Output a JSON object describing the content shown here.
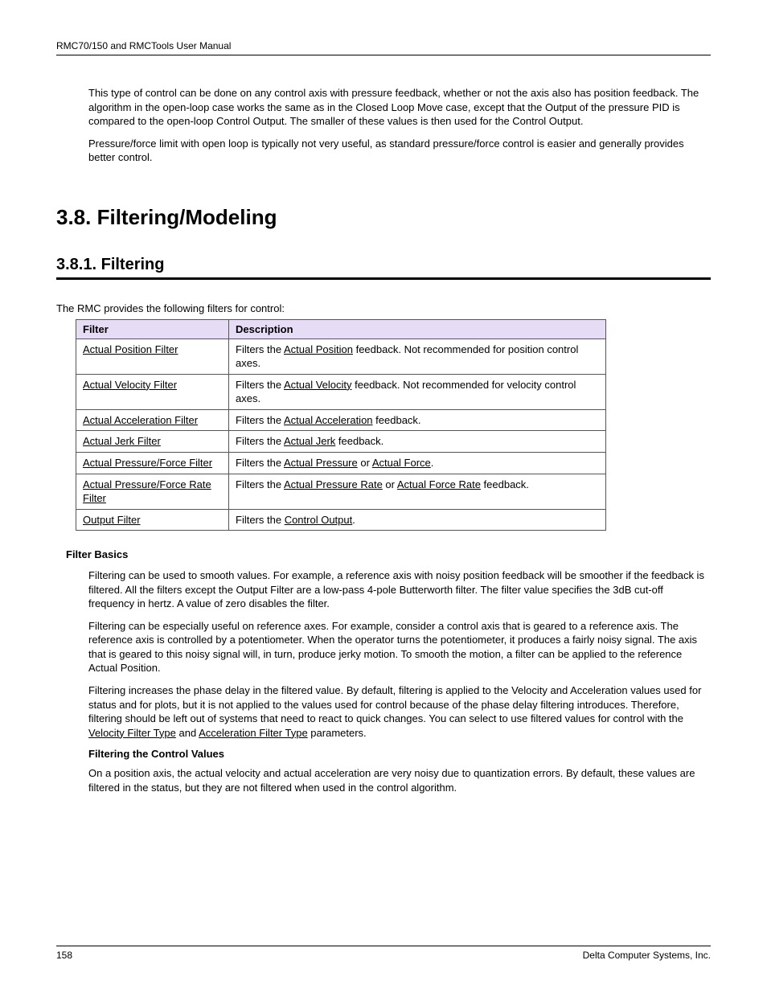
{
  "header": {
    "text": "RMC70/150 and RMCTools User Manual"
  },
  "intro": {
    "p1": "This type of control can be done on any control axis with pressure feedback, whether or not the axis also has position feedback. The algorithm in the open-loop case works the same as in the Closed Loop Move case, except that the Output of the pressure PID is compared to the open-loop Control Output. The smaller of these values is then used for the Control Output.",
    "p2": "Pressure/force limit with open loop is typically not very useful, as standard pressure/force control is easier and generally provides better control."
  },
  "headings": {
    "h1": "3.8. Filtering/Modeling",
    "h2": "3.8.1. Filtering",
    "intro": "The RMC provides the following filters for control:",
    "filter_basics": "Filter Basics",
    "filtering_control": "Filtering the Control Values"
  },
  "table": {
    "header_bg": "#e6dcf5",
    "col1": "Filter",
    "col2": "Description",
    "rows": [
      {
        "filter": "Actual Position Filter",
        "desc_pre": "Filters the ",
        "desc_link": "Actual Position",
        "desc_post": " feedback. Not recommended for position control axes."
      },
      {
        "filter": "Actual Velocity Filter",
        "desc_pre": "Filters the ",
        "desc_link": "Actual Velocity",
        "desc_post": " feedback. Not recommended for velocity control axes."
      },
      {
        "filter": "Actual Acceleration Filter",
        "desc_pre": "Filters the ",
        "desc_link": "Actual Acceleration",
        "desc_post": " feedback."
      },
      {
        "filter": "Actual Jerk Filter",
        "desc_pre": "Filters the ",
        "desc_link": "Actual Jerk",
        "desc_post": " feedback."
      },
      {
        "filter": "Actual Pressure/Force Filter",
        "desc_pre": "Filters the ",
        "desc_link": "Actual Pressure",
        "desc_mid": " or ",
        "desc_link2": "Actual Force",
        "desc_post": "."
      },
      {
        "filter": "Actual Pressure/Force Rate Filter",
        "desc_pre": "Filters the ",
        "desc_link": "Actual Pressure Rate",
        "desc_mid": " or ",
        "desc_link2": "Actual Force Rate",
        "desc_post": " feedback."
      },
      {
        "filter": "Output Filter",
        "desc_pre": "Filters the ",
        "desc_link": "Control Output",
        "desc_post": "."
      }
    ]
  },
  "basics": {
    "p1": "Filtering can be used to smooth values. For example, a reference axis with noisy position feedback will be smoother if the feedback is filtered. All the filters except the Output Filter are a low-pass 4-pole Butterworth filter. The filter value specifies the 3dB cut-off frequency in hertz. A value of zero disables the filter.",
    "p2": "Filtering can be especially useful on reference axes. For example, consider a control axis that is geared to a reference axis. The reference axis is controlled by a potentiometer. When the operator turns the potentiometer, it produces a fairly noisy signal. The axis that is geared to this noisy signal will, in turn, produce jerky motion. To smooth the motion, a filter can be applied to the reference Actual Position.",
    "p3_pre": "Filtering increases the phase delay in the filtered value. By default, filtering is applied to the Velocity and Acceleration values used for status and for plots, but it is not applied to the values used for control because of the phase delay filtering introduces. Therefore, filtering should be left out of systems that need to react to quick changes. You can select to use filtered values for control with the ",
    "p3_link1": "Velocity Filter Type",
    "p3_mid": " and ",
    "p3_link2": "Acceleration Filter Type",
    "p3_post": " parameters."
  },
  "control_values": {
    "p1": "On a position axis, the actual velocity and actual acceleration are very noisy due to quantization errors. By default, these values are filtered in the status, but they are not filtered when used in the control algorithm."
  },
  "footer": {
    "page": "158",
    "company": "Delta Computer Systems, Inc."
  }
}
